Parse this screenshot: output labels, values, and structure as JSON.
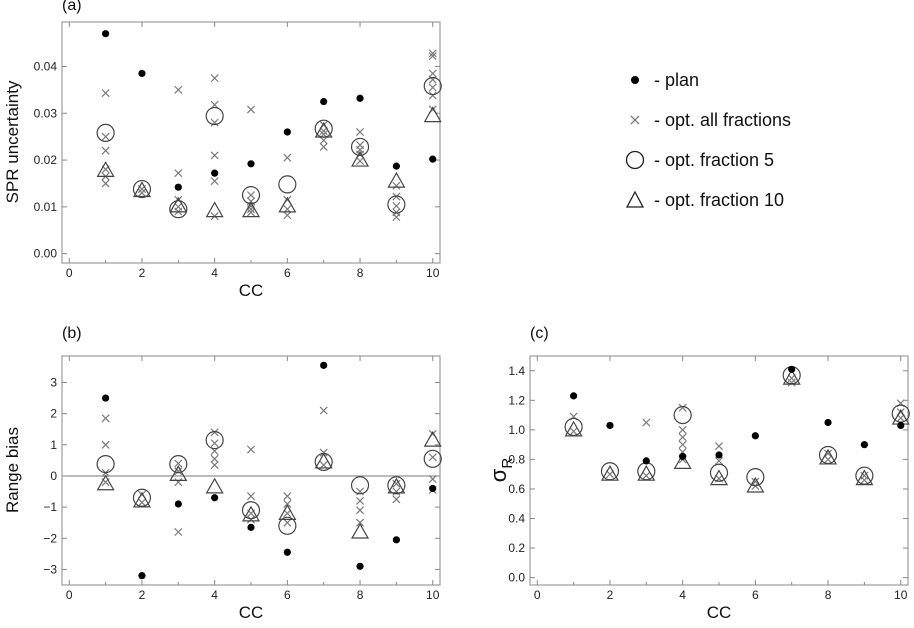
{
  "legend": [
    {
      "symbol": "dot",
      "label": "- plan"
    },
    {
      "symbol": "cross",
      "label": "- opt. all fractions"
    },
    {
      "symbol": "circle",
      "label": "- opt. fraction 5"
    },
    {
      "symbol": "triangle",
      "label": "- opt. fraction 10"
    }
  ],
  "colors": {
    "dot": "#000000",
    "cross": "#7a7a7a",
    "open": "#444444",
    "axis": "#888888"
  },
  "chart_data": [
    {
      "panel": "(a)",
      "type": "scatter",
      "xlabel": "CC",
      "ylabel": "SPR uncertainty",
      "xlim": [
        -0.2,
        10.2
      ],
      "ylim": [
        -0.002,
        0.0495
      ],
      "xticks": [
        0,
        2,
        4,
        6,
        8,
        10
      ],
      "xtick_labels": [
        "0",
        "2",
        "4",
        "6",
        "8",
        "10"
      ],
      "yticks": [
        0,
        0.01,
        0.02,
        0.03,
        0.04
      ],
      "ytick_labels": [
        "0.00",
        "0.01",
        "0.02",
        "0.03",
        "0.04"
      ],
      "zero_line": false,
      "series": [
        {
          "name": "plan",
          "marker": "dot",
          "x": [
            1,
            2,
            3,
            4,
            5,
            6,
            7,
            8,
            9,
            10
          ],
          "y": [
            0.047,
            0.0385,
            0.0142,
            0.0172,
            0.0192,
            0.026,
            0.0325,
            0.0332,
            0.0187,
            0.0202
          ]
        },
        {
          "name": "opt. all fractions",
          "marker": "cross",
          "x": [
            1,
            1,
            1,
            1,
            1,
            1,
            2,
            2,
            3,
            3,
            3,
            3,
            3,
            4,
            4,
            4,
            4,
            4,
            4,
            5,
            5,
            5,
            5,
            5,
            5,
            6,
            6,
            6,
            6,
            7,
            7,
            7,
            7,
            7,
            8,
            8,
            8,
            8,
            8,
            9,
            9,
            9,
            9,
            9,
            10,
            10,
            10,
            10,
            10,
            10,
            10
          ],
          "y": [
            0.0343,
            0.022,
            0.018,
            0.0165,
            0.015,
            0.025,
            0.0138,
            0.013,
            0.035,
            0.0172,
            0.0115,
            0.01,
            0.009,
            0.0375,
            0.0318,
            0.028,
            0.021,
            0.0155,
            0.008,
            0.0308,
            0.0112,
            0.0102,
            0.0095,
            0.0088,
            0.0125,
            0.0205,
            0.0115,
            0.0095,
            0.0082,
            0.0242,
            0.0228,
            0.0262,
            0.0275,
            0.0255,
            0.026,
            0.0232,
            0.0222,
            0.0212,
            0.0198,
            0.0145,
            0.0122,
            0.0102,
            0.0088,
            0.0078,
            0.0428,
            0.0422,
            0.0385,
            0.0372,
            0.0355,
            0.0338,
            0.0308
          ]
        },
        {
          "name": "opt. fraction 5",
          "marker": "circle",
          "x": [
            1,
            2,
            3,
            4,
            5,
            6,
            7,
            8,
            9,
            10
          ],
          "y": [
            0.0258,
            0.0138,
            0.0095,
            0.0294,
            0.0125,
            0.0148,
            0.0267,
            0.0228,
            0.0105,
            0.0358
          ]
        },
        {
          "name": "opt. fraction 10",
          "marker": "triangle",
          "x": [
            1,
            2,
            3,
            4,
            5,
            6,
            7,
            8,
            9,
            10
          ],
          "y": [
            0.0178,
            0.0135,
            0.0102,
            0.0092,
            0.0092,
            0.0102,
            0.0262,
            0.02,
            0.0155,
            0.0295
          ]
        }
      ]
    },
    {
      "panel": "(b)",
      "type": "scatter",
      "xlabel": "CC",
      "ylabel": "Range bias",
      "xlim": [
        -0.2,
        10.2
      ],
      "ylim": [
        -3.5,
        3.85
      ],
      "xticks": [
        0,
        2,
        4,
        6,
        8,
        10
      ],
      "xtick_labels": [
        "0",
        "2",
        "4",
        "6",
        "8",
        "10"
      ],
      "yticks": [
        -3,
        -2,
        -1,
        0,
        1,
        2,
        3
      ],
      "ytick_labels": [
        "−3",
        "−2",
        "−1",
        "0",
        "1",
        "2",
        "3"
      ],
      "zero_line": true,
      "series": [
        {
          "name": "plan",
          "marker": "dot",
          "x": [
            1,
            2,
            3,
            4,
            5,
            6,
            7,
            8,
            9,
            10
          ],
          "y": [
            2.5,
            -3.2,
            -0.9,
            -0.7,
            -1.65,
            -2.45,
            3.55,
            -2.9,
            -2.05,
            -0.4
          ]
        },
        {
          "name": "opt. all fractions",
          "marker": "cross",
          "x": [
            1,
            1,
            1,
            1,
            2,
            2,
            3,
            3,
            3,
            3,
            4,
            4,
            4,
            4,
            4,
            5,
            5,
            5,
            5,
            6,
            6,
            6,
            6,
            7,
            7,
            7,
            8,
            8,
            8,
            8,
            9,
            9,
            9,
            10,
            10,
            10,
            10
          ],
          "y": [
            1.85,
            1.0,
            0.1,
            -0.2,
            -0.6,
            -0.85,
            -1.8,
            0.4,
            0.15,
            -0.2,
            1.4,
            1.05,
            0.8,
            0.55,
            0.35,
            0.85,
            -0.65,
            -1.2,
            -1.4,
            -0.65,
            -0.9,
            -1.2,
            -1.5,
            2.1,
            0.75,
            0.35,
            -0.5,
            -0.8,
            -1.1,
            -1.5,
            -0.25,
            -0.5,
            -0.75,
            1.35,
            0.6,
            -0.1,
            -0.45
          ]
        },
        {
          "name": "opt. fraction 5",
          "marker": "circle",
          "x": [
            1,
            2,
            3,
            4,
            5,
            6,
            7,
            8,
            9,
            10
          ],
          "y": [
            0.38,
            -0.7,
            0.38,
            1.15,
            -1.1,
            -1.6,
            0.45,
            -0.3,
            -0.3,
            0.55
          ]
        },
        {
          "name": "opt. fraction 10",
          "marker": "triangle",
          "x": [
            1,
            2,
            3,
            4,
            5,
            6,
            7,
            8,
            9,
            10
          ],
          "y": [
            -0.25,
            -0.8,
            0.05,
            -0.35,
            -1.25,
            -1.2,
            0.45,
            -1.8,
            -0.35,
            1.15
          ]
        }
      ]
    },
    {
      "panel": "(c)",
      "type": "scatter",
      "xlabel": "CC",
      "ylabel": "σR",
      "ylabel_main": "σ",
      "ylabel_sub": "R",
      "xlim": [
        -0.2,
        10.2
      ],
      "ylim": [
        -0.05,
        1.5
      ],
      "xticks": [
        0,
        2,
        4,
        6,
        8,
        10
      ],
      "xtick_labels": [
        "0",
        "2",
        "4",
        "6",
        "8",
        "10"
      ],
      "yticks": [
        0,
        0.2,
        0.4,
        0.6,
        0.8,
        1.0,
        1.2,
        1.4
      ],
      "ytick_labels": [
        "0.0",
        "0.2",
        "0.4",
        "0.6",
        "0.8",
        "1.0",
        "1.2",
        "1.4"
      ],
      "zero_line": false,
      "series": [
        {
          "name": "plan",
          "marker": "dot",
          "x": [
            1,
            2,
            3,
            4,
            5,
            6,
            7,
            8,
            9,
            10
          ],
          "y": [
            1.23,
            1.03,
            0.79,
            0.82,
            0.83,
            0.96,
            1.41,
            1.05,
            0.9,
            1.03
          ]
        },
        {
          "name": "opt. all fractions",
          "marker": "cross",
          "x": [
            1,
            1,
            2,
            3,
            3,
            4,
            4,
            4,
            4,
            4,
            4,
            5,
            5,
            5,
            6,
            6,
            7,
            7,
            8,
            8,
            9,
            9,
            10,
            10,
            10
          ],
          "y": [
            1.09,
            0.99,
            0.7,
            1.05,
            0.69,
            1.15,
            1.0,
            0.95,
            0.9,
            0.85,
            0.8,
            0.89,
            0.79,
            0.67,
            0.65,
            0.62,
            1.35,
            1.32,
            0.84,
            0.8,
            0.69,
            0.66,
            1.18,
            1.12,
            1.08
          ]
        },
        {
          "name": "opt. fraction 5",
          "marker": "circle",
          "x": [
            1,
            2,
            3,
            4,
            5,
            6,
            7,
            8,
            9,
            10
          ],
          "y": [
            1.02,
            0.72,
            0.72,
            1.1,
            0.71,
            0.68,
            1.37,
            0.83,
            0.69,
            1.11
          ]
        },
        {
          "name": "opt. fraction 10",
          "marker": "triangle",
          "x": [
            1,
            2,
            3,
            4,
            5,
            6,
            7,
            8,
            9,
            10
          ],
          "y": [
            1.0,
            0.7,
            0.7,
            0.78,
            0.67,
            0.62,
            1.35,
            0.81,
            0.67,
            1.08
          ]
        }
      ]
    }
  ]
}
